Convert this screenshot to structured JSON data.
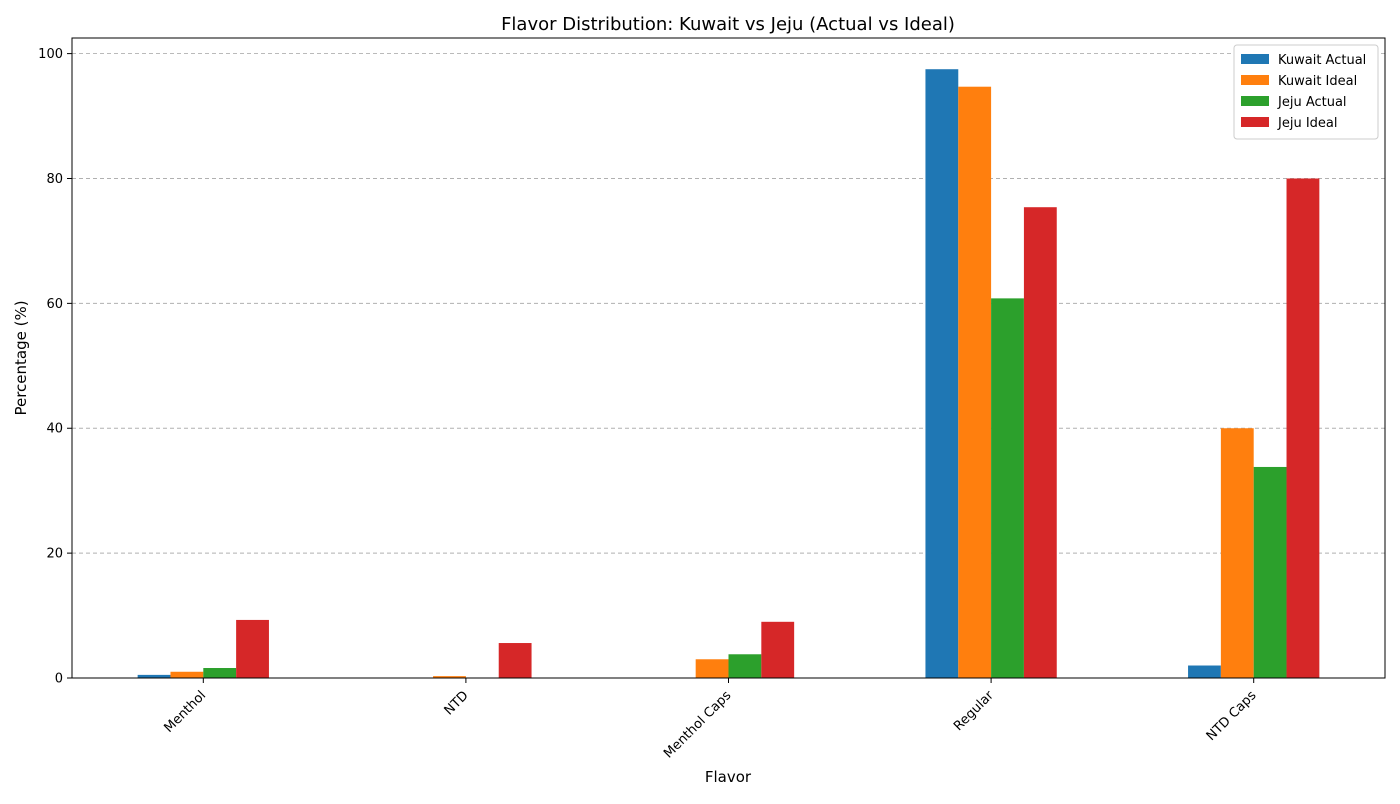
{
  "chart_data": {
    "type": "bar",
    "title": "Flavor Distribution: Kuwait vs Jeju (Actual vs Ideal)",
    "xlabel": "Flavor",
    "ylabel": "Percentage (%)",
    "categories": [
      "Menthol",
      "NTD",
      "Menthol Caps",
      "Regular",
      "NTD Caps"
    ],
    "ylim": [
      0,
      102.5
    ],
    "yticks": [
      0,
      20,
      40,
      60,
      80,
      100
    ],
    "grid": "y-dashed",
    "legend_position": "top-right",
    "series": [
      {
        "name": "Kuwait Actual",
        "color": "#1f77b4",
        "values": [
          0.5,
          0.0,
          0.0,
          97.5,
          2.0
        ]
      },
      {
        "name": "Kuwait Ideal",
        "color": "#ff7f0e",
        "values": [
          1.0,
          0.3,
          3.0,
          94.7,
          40.0
        ]
      },
      {
        "name": "Jeju Actual",
        "color": "#2ca02c",
        "values": [
          1.6,
          0.0,
          3.8,
          60.8,
          33.8
        ]
      },
      {
        "name": "Jeju Ideal",
        "color": "#d62728",
        "values": [
          9.3,
          5.6,
          9.0,
          75.4,
          80.0
        ]
      }
    ]
  }
}
